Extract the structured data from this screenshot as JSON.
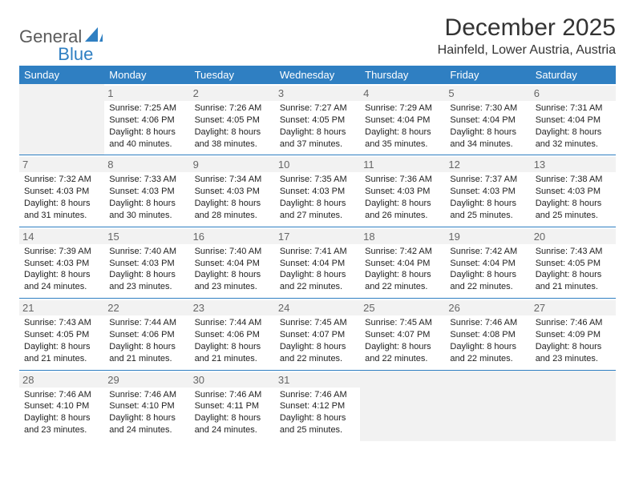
{
  "brand": {
    "part1": "General",
    "part2": "Blue"
  },
  "title": "December 2025",
  "location": "Hainfeld, Lower Austria, Austria",
  "colors": {
    "header_bg": "#2f7fc2",
    "header_fg": "#ffffff",
    "datenum_bg": "#f2f2f2",
    "border": "#2f7fc2"
  },
  "day_headers": [
    "Sunday",
    "Monday",
    "Tuesday",
    "Wednesday",
    "Thursday",
    "Friday",
    "Saturday"
  ],
  "weeks": [
    [
      null,
      {
        "n": "1",
        "sr": "7:25 AM",
        "ss": "4:06 PM",
        "dl": "8 hours and 40 minutes."
      },
      {
        "n": "2",
        "sr": "7:26 AM",
        "ss": "4:05 PM",
        "dl": "8 hours and 38 minutes."
      },
      {
        "n": "3",
        "sr": "7:27 AM",
        "ss": "4:05 PM",
        "dl": "8 hours and 37 minutes."
      },
      {
        "n": "4",
        "sr": "7:29 AM",
        "ss": "4:04 PM",
        "dl": "8 hours and 35 minutes."
      },
      {
        "n": "5",
        "sr": "7:30 AM",
        "ss": "4:04 PM",
        "dl": "8 hours and 34 minutes."
      },
      {
        "n": "6",
        "sr": "7:31 AM",
        "ss": "4:04 PM",
        "dl": "8 hours and 32 minutes."
      }
    ],
    [
      {
        "n": "7",
        "sr": "7:32 AM",
        "ss": "4:03 PM",
        "dl": "8 hours and 31 minutes."
      },
      {
        "n": "8",
        "sr": "7:33 AM",
        "ss": "4:03 PM",
        "dl": "8 hours and 30 minutes."
      },
      {
        "n": "9",
        "sr": "7:34 AM",
        "ss": "4:03 PM",
        "dl": "8 hours and 28 minutes."
      },
      {
        "n": "10",
        "sr": "7:35 AM",
        "ss": "4:03 PM",
        "dl": "8 hours and 27 minutes."
      },
      {
        "n": "11",
        "sr": "7:36 AM",
        "ss": "4:03 PM",
        "dl": "8 hours and 26 minutes."
      },
      {
        "n": "12",
        "sr": "7:37 AM",
        "ss": "4:03 PM",
        "dl": "8 hours and 25 minutes."
      },
      {
        "n": "13",
        "sr": "7:38 AM",
        "ss": "4:03 PM",
        "dl": "8 hours and 25 minutes."
      }
    ],
    [
      {
        "n": "14",
        "sr": "7:39 AM",
        "ss": "4:03 PM",
        "dl": "8 hours and 24 minutes."
      },
      {
        "n": "15",
        "sr": "7:40 AM",
        "ss": "4:03 PM",
        "dl": "8 hours and 23 minutes."
      },
      {
        "n": "16",
        "sr": "7:40 AM",
        "ss": "4:04 PM",
        "dl": "8 hours and 23 minutes."
      },
      {
        "n": "17",
        "sr": "7:41 AM",
        "ss": "4:04 PM",
        "dl": "8 hours and 22 minutes."
      },
      {
        "n": "18",
        "sr": "7:42 AM",
        "ss": "4:04 PM",
        "dl": "8 hours and 22 minutes."
      },
      {
        "n": "19",
        "sr": "7:42 AM",
        "ss": "4:04 PM",
        "dl": "8 hours and 22 minutes."
      },
      {
        "n": "20",
        "sr": "7:43 AM",
        "ss": "4:05 PM",
        "dl": "8 hours and 21 minutes."
      }
    ],
    [
      {
        "n": "21",
        "sr": "7:43 AM",
        "ss": "4:05 PM",
        "dl": "8 hours and 21 minutes."
      },
      {
        "n": "22",
        "sr": "7:44 AM",
        "ss": "4:06 PM",
        "dl": "8 hours and 21 minutes."
      },
      {
        "n": "23",
        "sr": "7:44 AM",
        "ss": "4:06 PM",
        "dl": "8 hours and 21 minutes."
      },
      {
        "n": "24",
        "sr": "7:45 AM",
        "ss": "4:07 PM",
        "dl": "8 hours and 22 minutes."
      },
      {
        "n": "25",
        "sr": "7:45 AM",
        "ss": "4:07 PM",
        "dl": "8 hours and 22 minutes."
      },
      {
        "n": "26",
        "sr": "7:46 AM",
        "ss": "4:08 PM",
        "dl": "8 hours and 22 minutes."
      },
      {
        "n": "27",
        "sr": "7:46 AM",
        "ss": "4:09 PM",
        "dl": "8 hours and 23 minutes."
      }
    ],
    [
      {
        "n": "28",
        "sr": "7:46 AM",
        "ss": "4:10 PM",
        "dl": "8 hours and 23 minutes."
      },
      {
        "n": "29",
        "sr": "7:46 AM",
        "ss": "4:10 PM",
        "dl": "8 hours and 24 minutes."
      },
      {
        "n": "30",
        "sr": "7:46 AM",
        "ss": "4:11 PM",
        "dl": "8 hours and 24 minutes."
      },
      {
        "n": "31",
        "sr": "7:46 AM",
        "ss": "4:12 PM",
        "dl": "8 hours and 25 minutes."
      },
      null,
      null,
      null
    ]
  ],
  "labels": {
    "sunrise_prefix": "Sunrise: ",
    "sunset_prefix": "Sunset: ",
    "daylight_prefix": "Daylight: "
  }
}
